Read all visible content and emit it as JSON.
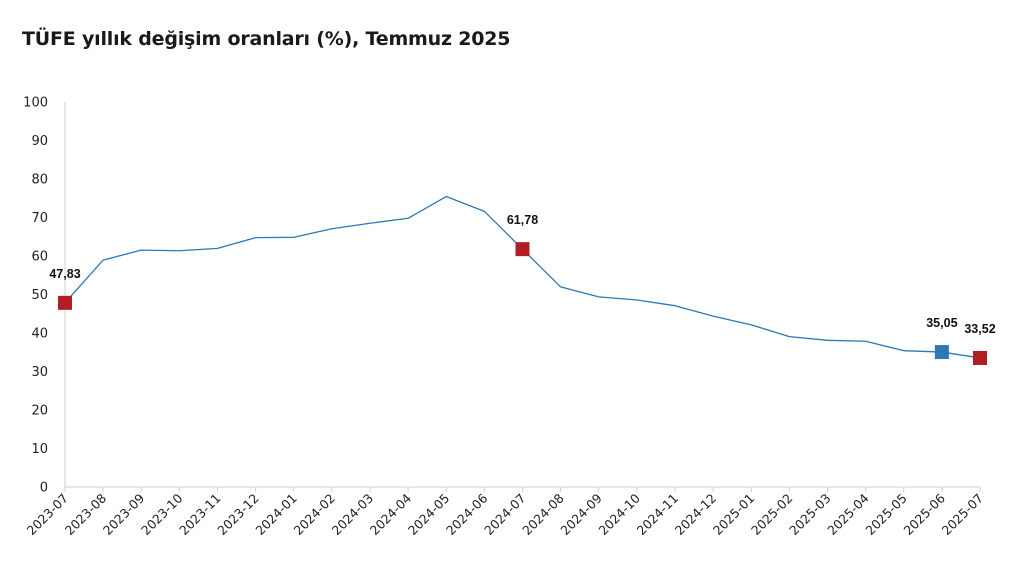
{
  "chart_data": {
    "type": "line",
    "title": "TÜFE yıllık değişim oranları (%), Temmuz 2025",
    "xlabel": "",
    "ylabel": "",
    "ylim": [
      0,
      100
    ],
    "yticks": [
      "0",
      "10",
      "20",
      "30",
      "40",
      "50",
      "60",
      "70",
      "80",
      "90",
      "100"
    ],
    "categories": [
      "2023-07",
      "2023-08",
      "2023-09",
      "2023-10",
      "2023-11",
      "2023-12",
      "2024-01",
      "2024-02",
      "2024-03",
      "2024-04",
      "2024-05",
      "2024-06",
      "2024-07",
      "2024-08",
      "2024-09",
      "2024-10",
      "2024-11",
      "2024-12",
      "2025-01",
      "2025-02",
      "2025-03",
      "2025-04",
      "2025-05",
      "2025-06",
      "2025-07"
    ],
    "series": [
      {
        "values": [
          47.83,
          58.94,
          61.53,
          61.36,
          61.98,
          64.77,
          64.86,
          67.07,
          68.5,
          69.8,
          75.45,
          71.6,
          61.78,
          51.97,
          49.38,
          48.58,
          47.09,
          44.38,
          42.12,
          39.05,
          38.1,
          37.86,
          35.41,
          35.05,
          33.52
        ]
      }
    ],
    "highlights": [
      {
        "category": "2023-07",
        "value": 47.83,
        "label": "47,83",
        "color": "#b01e23"
      },
      {
        "category": "2024-07",
        "value": 61.78,
        "label": "61,78",
        "color": "#b01e23"
      },
      {
        "category": "2025-06",
        "value": 35.05,
        "label": "35,05",
        "color": "#2e78b7"
      },
      {
        "category": "2025-07",
        "value": 33.52,
        "label": "33,52",
        "color": "#b01e23"
      }
    ],
    "line_color": "#2e78b7",
    "axis_color": "#d0d0d0",
    "grid": false,
    "legend": "none"
  }
}
